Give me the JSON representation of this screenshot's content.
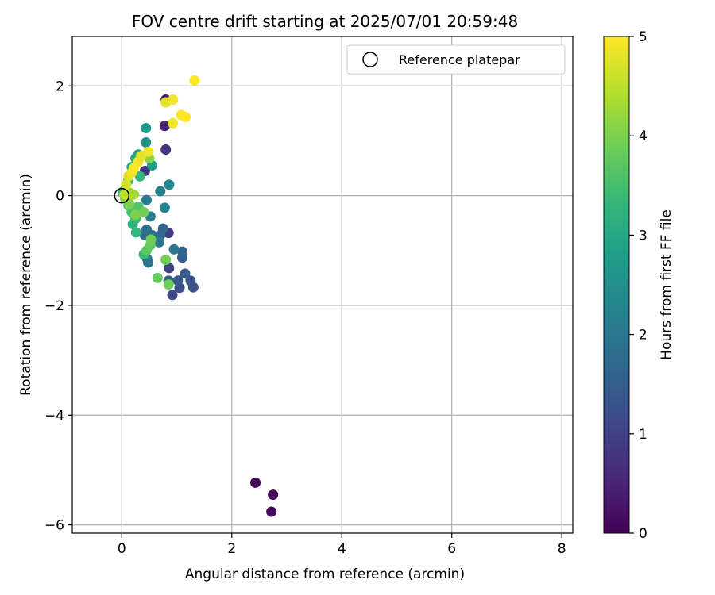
{
  "chart_data": {
    "type": "scatter",
    "title": "FOV centre drift starting at 2025/07/01 20:59:48",
    "xlabel": "Angular distance from reference (arcmin)",
    "ylabel": "Rotation from reference (arcmin)",
    "xlim": [
      -0.9,
      8.2
    ],
    "ylim": [
      -6.15,
      2.9
    ],
    "xticks": [
      0,
      2,
      4,
      6,
      8
    ],
    "xtick_labels": [
      "0",
      "2",
      "4",
      "6",
      "8"
    ],
    "yticks": [
      2,
      0,
      -2,
      -4,
      -6
    ],
    "ytick_labels": [
      "2",
      "0",
      "−2",
      "−4",
      "−6"
    ],
    "grid": true,
    "legend": {
      "position": "upper-right",
      "entries": [
        "Reference platepar"
      ]
    },
    "reference": {
      "x": 0,
      "y": 0
    },
    "colorbar": {
      "label": "Hours from first FF file",
      "range": [
        0,
        5
      ],
      "ticks": [
        0,
        1,
        2,
        3,
        4,
        5
      ],
      "tick_labels": [
        "0",
        "1",
        "2",
        "3",
        "4",
        "5"
      ],
      "colormap": "viridis",
      "colormap_stops": [
        "#440154",
        "#482878",
        "#3e4989",
        "#31688e",
        "#26828e",
        "#1f9e89",
        "#35b779",
        "#6ece58",
        "#b5de2b",
        "#fde725"
      ]
    },
    "points": [
      {
        "x": 2.43,
        "y": -5.23,
        "c": 0.05
      },
      {
        "x": 2.75,
        "y": -5.45,
        "c": 0.08
      },
      {
        "x": 2.72,
        "y": -5.76,
        "c": 0.1
      },
      {
        "x": 0.8,
        "y": 1.75,
        "c": 0.4
      },
      {
        "x": 0.78,
        "y": 1.27,
        "c": 0.5
      },
      {
        "x": 0.8,
        "y": 0.84,
        "c": 0.7
      },
      {
        "x": 0.42,
        "y": 0.45,
        "c": 0.8
      },
      {
        "x": 0.85,
        "y": -0.68,
        "c": 0.9
      },
      {
        "x": 0.86,
        "y": -1.32,
        "c": 1.0
      },
      {
        "x": 0.92,
        "y": -1.81,
        "c": 1.1
      },
      {
        "x": 1.05,
        "y": -1.68,
        "c": 1.2
      },
      {
        "x": 1.3,
        "y": -1.67,
        "c": 1.3
      },
      {
        "x": 1.25,
        "y": -1.55,
        "c": 1.3
      },
      {
        "x": 1.15,
        "y": -1.42,
        "c": 1.4
      },
      {
        "x": 1.02,
        "y": -1.55,
        "c": 1.4
      },
      {
        "x": 0.85,
        "y": -1.55,
        "c": 1.5
      },
      {
        "x": 1.1,
        "y": -1.13,
        "c": 1.5
      },
      {
        "x": 1.1,
        "y": -1.02,
        "c": 1.6
      },
      {
        "x": 0.75,
        "y": -0.6,
        "c": 1.6
      },
      {
        "x": 0.7,
        "y": -0.72,
        "c": 1.7
      },
      {
        "x": 0.55,
        "y": -0.72,
        "c": 1.7
      },
      {
        "x": 0.45,
        "y": -0.62,
        "c": 1.8
      },
      {
        "x": 0.42,
        "y": -0.72,
        "c": 1.8
      },
      {
        "x": 0.48,
        "y": -1.22,
        "c": 1.9
      },
      {
        "x": 0.46,
        "y": -1.15,
        "c": 1.9
      },
      {
        "x": 0.95,
        "y": -0.98,
        "c": 2.0
      },
      {
        "x": 0.68,
        "y": -0.85,
        "c": 2.0
      },
      {
        "x": 0.52,
        "y": -0.38,
        "c": 2.1
      },
      {
        "x": 0.45,
        "y": -0.08,
        "c": 2.1
      },
      {
        "x": 0.78,
        "y": -0.22,
        "c": 2.2
      },
      {
        "x": 0.7,
        "y": 0.08,
        "c": 2.2
      },
      {
        "x": 0.86,
        "y": 0.2,
        "c": 2.3
      },
      {
        "x": 0.44,
        "y": 0.97,
        "c": 2.5
      },
      {
        "x": 0.44,
        "y": 1.23,
        "c": 2.7
      },
      {
        "x": 0.55,
        "y": 0.55,
        "c": 2.8
      },
      {
        "x": 0.3,
        "y": 0.75,
        "c": 2.9
      },
      {
        "x": 0.25,
        "y": 0.68,
        "c": 3.0
      },
      {
        "x": 0.18,
        "y": 0.52,
        "c": 3.0
      },
      {
        "x": 0.12,
        "y": 0.28,
        "c": 3.1
      },
      {
        "x": 0.05,
        "y": 0.1,
        "c": 3.2
      },
      {
        "x": 0.02,
        "y": 0.05,
        "c": 3.2
      },
      {
        "x": 0.33,
        "y": 0.35,
        "c": 3.3
      },
      {
        "x": 0.2,
        "y": -0.52,
        "c": 3.2
      },
      {
        "x": 0.26,
        "y": -0.67,
        "c": 3.3
      },
      {
        "x": 0.4,
        "y": -1.07,
        "c": 3.4
      },
      {
        "x": 0.25,
        "y": -0.42,
        "c": 3.4
      },
      {
        "x": 0.18,
        "y": -0.3,
        "c": 3.5
      },
      {
        "x": 0.12,
        "y": -0.18,
        "c": 3.6
      },
      {
        "x": 0.3,
        "y": -0.2,
        "c": 3.6
      },
      {
        "x": 0.45,
        "y": -1.0,
        "c": 3.7
      },
      {
        "x": 0.52,
        "y": -0.9,
        "c": 3.8
      },
      {
        "x": 0.53,
        "y": -0.8,
        "c": 3.9
      },
      {
        "x": 0.8,
        "y": -1.17,
        "c": 3.9
      },
      {
        "x": 0.85,
        "y": -1.62,
        "c": 3.9
      },
      {
        "x": 0.65,
        "y": -1.5,
        "c": 3.8
      },
      {
        "x": 0.4,
        "y": -0.3,
        "c": 3.9
      },
      {
        "x": 0.25,
        "y": -0.35,
        "c": 4.0
      },
      {
        "x": 0.14,
        "y": -0.15,
        "c": 4.0
      },
      {
        "x": 0.06,
        "y": -0.05,
        "c": 4.1
      },
      {
        "x": 0.5,
        "y": 0.68,
        "c": 4.1
      },
      {
        "x": 0.15,
        "y": 0.05,
        "c": 4.2
      },
      {
        "x": 0.22,
        "y": 0.02,
        "c": 4.3
      },
      {
        "x": 0.1,
        "y": 0.0,
        "c": 4.4
      },
      {
        "x": 0.05,
        "y": 0.02,
        "c": 4.5
      },
      {
        "x": 0.08,
        "y": 0.2,
        "c": 4.7
      },
      {
        "x": 0.12,
        "y": 0.35,
        "c": 4.8
      },
      {
        "x": 0.18,
        "y": 0.42,
        "c": 4.9
      },
      {
        "x": 0.22,
        "y": 0.5,
        "c": 5.0
      },
      {
        "x": 0.3,
        "y": 0.62,
        "c": 4.9
      },
      {
        "x": 0.35,
        "y": 0.72,
        "c": 4.8
      },
      {
        "x": 0.48,
        "y": 0.8,
        "c": 4.9
      },
      {
        "x": 0.8,
        "y": 1.7,
        "c": 4.8
      },
      {
        "x": 0.93,
        "y": 1.75,
        "c": 4.9
      },
      {
        "x": 0.93,
        "y": 1.32,
        "c": 4.9
      },
      {
        "x": 1.08,
        "y": 1.47,
        "c": 5.0
      },
      {
        "x": 1.16,
        "y": 1.43,
        "c": 5.0
      },
      {
        "x": 1.32,
        "y": 2.1,
        "c": 5.0
      }
    ]
  }
}
